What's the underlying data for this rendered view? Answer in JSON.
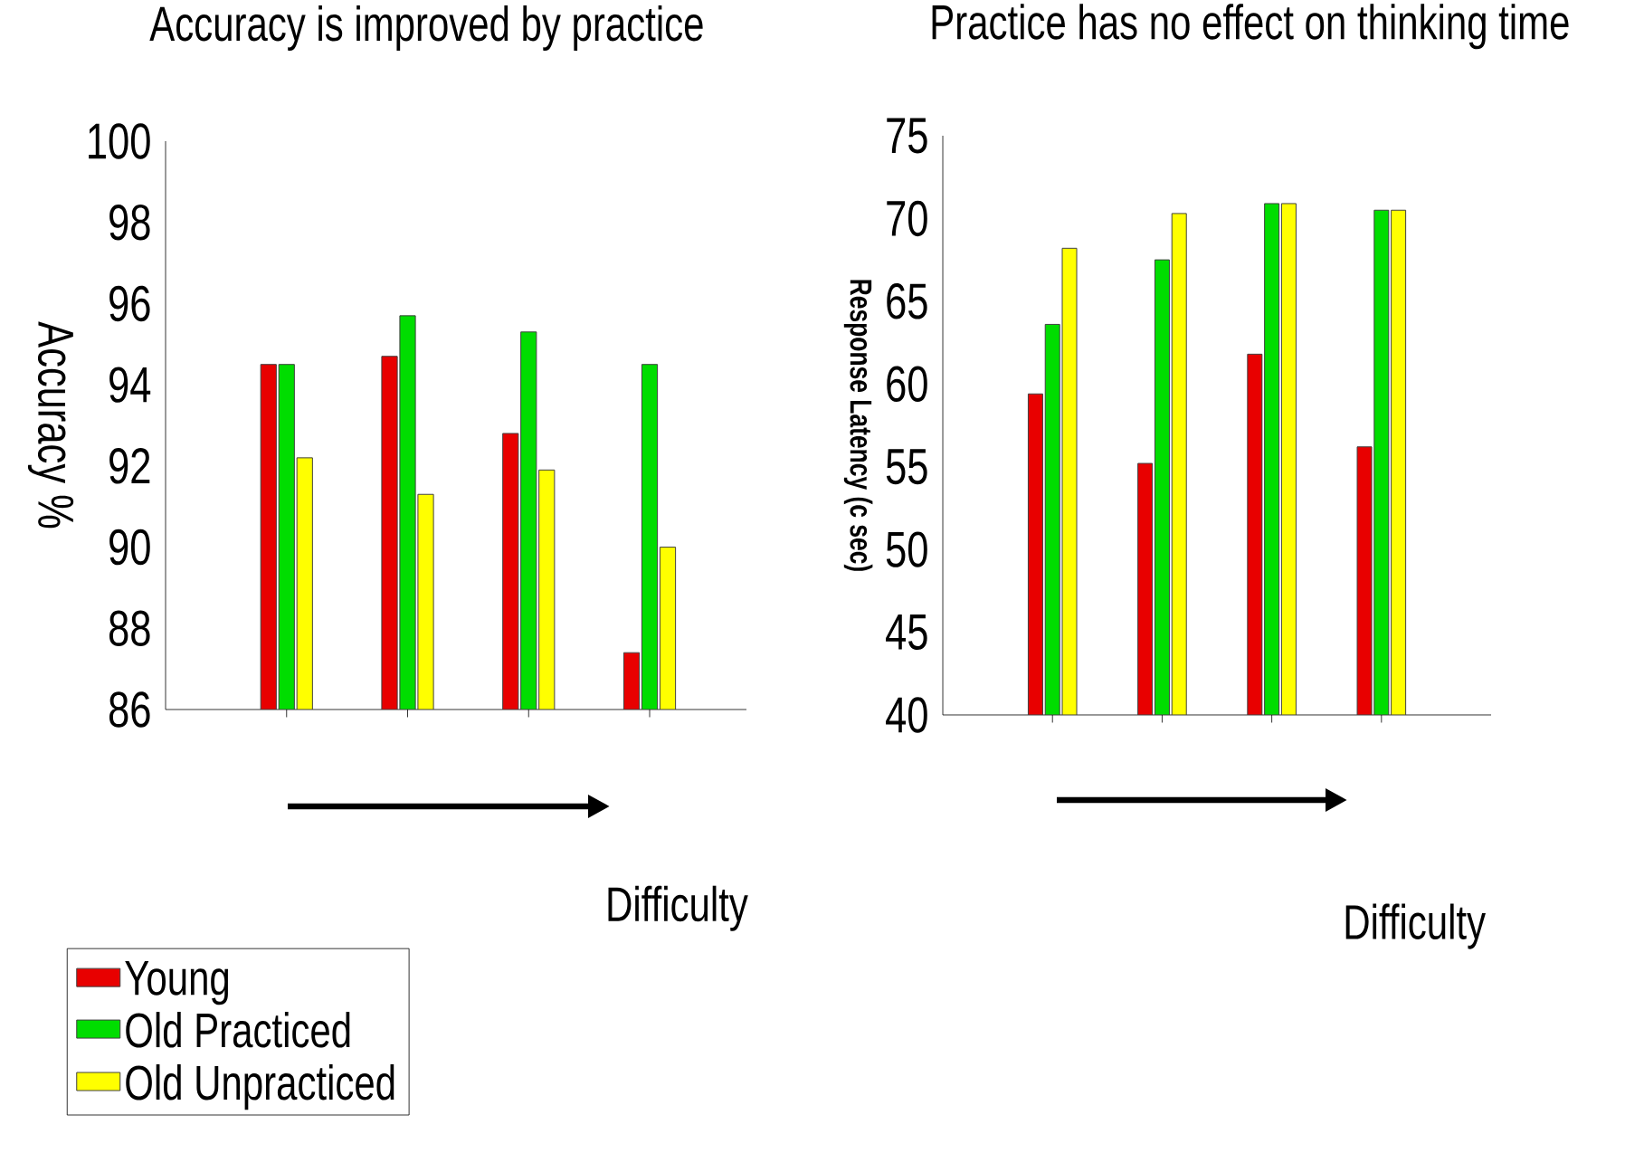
{
  "chart_data": [
    {
      "type": "bar",
      "title": "Accuracy is improved by practice",
      "xlabel": "Difficulty",
      "ylabel": "Accuracy %",
      "categories": [
        null,
        null,
        null,
        null
      ],
      "series": [
        {
          "name": "Young",
          "color": "#e80000",
          "values": [
            94.5,
            94.7,
            92.8,
            87.4
          ]
        },
        {
          "name": "Old Practiced",
          "color": "#00dd00",
          "values": [
            94.5,
            95.7,
            95.3,
            94.5
          ]
        },
        {
          "name": "Old Unpracticed",
          "color": "#ffff00",
          "values": [
            92.2,
            91.3,
            91.9,
            90.0
          ]
        }
      ],
      "ylim": [
        86,
        100
      ],
      "yticks": [
        86,
        88,
        90,
        92,
        94,
        96,
        98,
        100
      ],
      "legend": "bottom left"
    },
    {
      "type": "bar",
      "title": "Practice has no effect on thinking time",
      "xlabel": "Difficulty",
      "ylabel": "Response Latency (c sec)",
      "categories": [
        null,
        null,
        null,
        null
      ],
      "series": [
        {
          "color": "#e80000",
          "values": [
            59.4,
            55.2,
            61.8,
            56.2
          ]
        },
        {
          "color": "#00dd00",
          "values": [
            63.6,
            67.5,
            70.9,
            70.5
          ]
        },
        {
          "color": "#ffff00",
          "values": [
            68.2,
            70.3,
            70.9,
            70.5
          ]
        }
      ],
      "ylim": [
        40,
        75
      ],
      "yticks": [
        40,
        45,
        50,
        55,
        60,
        65,
        70,
        75
      ]
    }
  ]
}
